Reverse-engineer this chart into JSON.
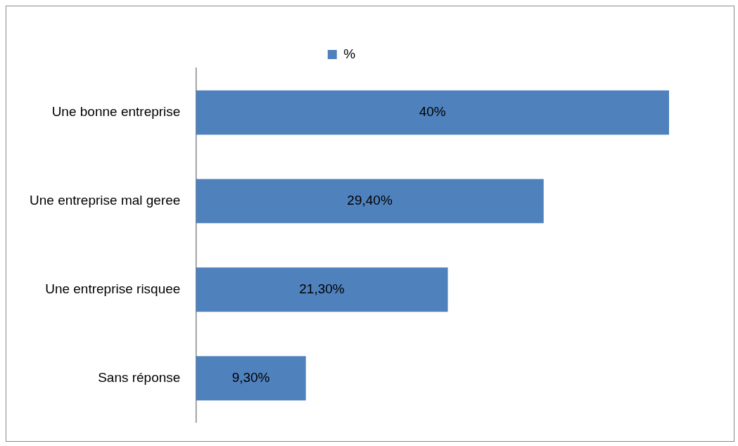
{
  "chart_data": {
    "type": "bar",
    "orientation": "horizontal",
    "categories": [
      "Une bonne entreprise",
      "Une entreprise mal geree",
      "Une entreprise risquee",
      "Sans réponse"
    ],
    "series": [
      {
        "name": "%",
        "color": "#4f81bd",
        "values": [
          40,
          29.4,
          21.3,
          9.3
        ],
        "value_labels": [
          "40%",
          "29,40%",
          "21,30%",
          "9,30%"
        ]
      }
    ],
    "xlim": [
      0,
      40
    ],
    "tick_labels": "y",
    "grid": false,
    "legend": "top"
  }
}
